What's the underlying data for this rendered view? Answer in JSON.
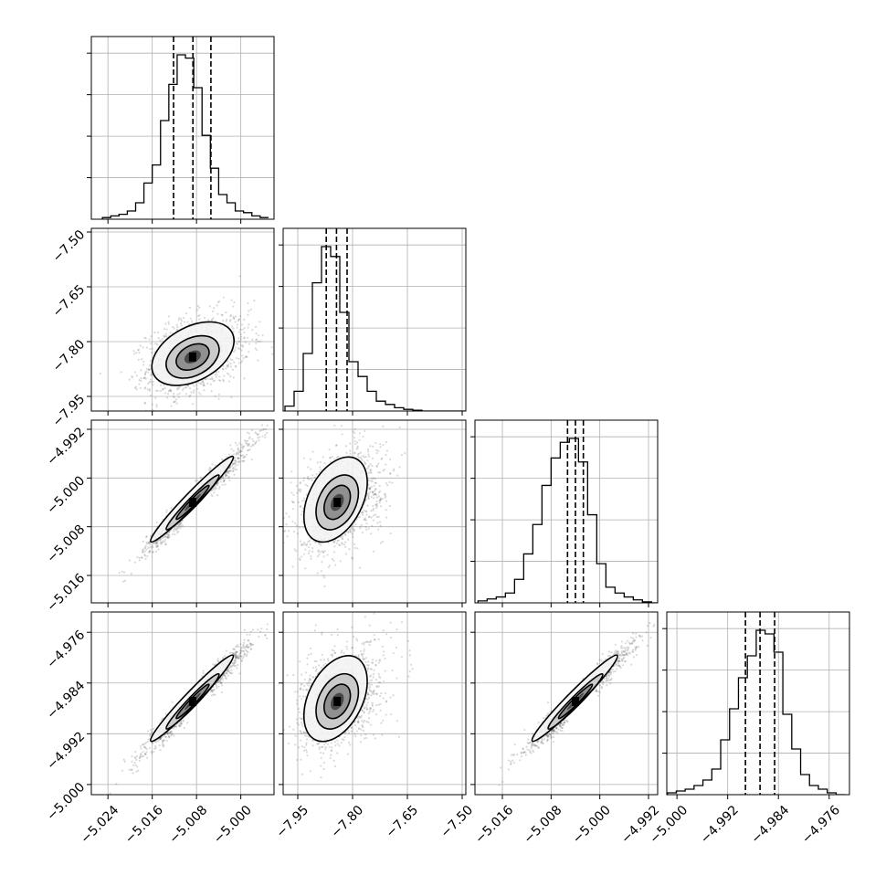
{
  "chart_data": {
    "type": "corner",
    "parameters": 4,
    "grid": true,
    "colors": {
      "frame": "#000000",
      "grid": "#b0b0b0",
      "points": "#555555",
      "dense": "#000000"
    },
    "params": [
      {
        "range": [
          -5.027,
          -4.994
        ],
        "ticks": [
          "−5.024",
          "−5.016",
          "−5.008",
          "−5.000"
        ],
        "tick_values": [
          -5.024,
          -5.016,
          -5.008,
          -5.0
        ]
      },
      {
        "range": [
          -7.99,
          -7.49
        ],
        "ticks": [
          "−7.95",
          "−7.80",
          "−7.65",
          "−7.50"
        ],
        "tick_values": [
          -7.95,
          -7.8,
          -7.65,
          -7.5
        ]
      },
      {
        "range": [
          -5.0205,
          -4.9905
        ],
        "ticks": [
          "−5.016",
          "−5.008",
          "−5.000",
          "−4.992"
        ],
        "tick_values": [
          -5.016,
          -5.008,
          -5.0,
          -4.992
        ]
      },
      {
        "range": [
          -5.0016,
          -4.9728
        ],
        "ticks": [
          "−5.000",
          "−4.992",
          "−4.984",
          "−4.976"
        ],
        "tick_values": [
          -5.0,
          -4.992,
          -4.984,
          -4.976
        ]
      }
    ],
    "marginals": [
      {
        "bins": [
          -5.025,
          -5.0235,
          -5.022,
          -5.0205,
          -5.019,
          -5.0175,
          -5.016,
          -5.0145,
          -5.013,
          -5.0115,
          -5.01,
          -5.0085,
          -5.007,
          -5.0055,
          -5.004,
          -5.0025,
          -5.001,
          -4.9995,
          -4.998,
          -4.9965,
          -4.995
        ],
        "counts": [
          1,
          2,
          3,
          5,
          10,
          22,
          33,
          60,
          82,
          100,
          98,
          80,
          51,
          31,
          15,
          10,
          5,
          4,
          2,
          1
        ],
        "quantiles": [
          -5.01215,
          -5.00865,
          -5.0054
        ]
      },
      {
        "bins": [
          -7.985,
          -7.96,
          -7.935,
          -7.91,
          -7.885,
          -7.86,
          -7.835,
          -7.81,
          -7.785,
          -7.76,
          -7.735,
          -7.71,
          -7.685,
          -7.66,
          -7.635,
          -7.61,
          -7.585,
          -7.56,
          -7.535,
          -7.51,
          -7.485
        ],
        "counts": [
          3,
          12,
          35,
          78,
          100,
          94,
          60,
          30,
          21,
          12,
          6,
          4,
          2,
          1,
          0.5,
          0,
          0,
          0,
          0,
          0
        ],
        "quantiles": [
          -7.872,
          -7.844,
          -7.815
        ]
      },
      {
        "bins": [
          -5.02,
          -5.0185,
          -5.017,
          -5.0155,
          -5.014,
          -5.0125,
          -5.011,
          -5.0095,
          -5.008,
          -5.0065,
          -5.005,
          -5.0035,
          -5.002,
          -5.0005,
          -4.999,
          -4.9975,
          -4.996,
          -4.9945,
          -4.993,
          -4.9915,
          -4.99
        ],
        "counts": [
          1,
          2,
          3,
          5,
          12,
          25,
          40,
          60,
          74,
          82,
          84,
          72,
          45,
          20,
          8,
          5,
          3,
          1.5,
          0.5,
          0
        ],
        "quantiles": [
          -5.0053,
          -5.004,
          -5.0027
        ]
      },
      {
        "bins": [
          -5.0015,
          -5.0001,
          -4.9987,
          -4.9973,
          -4.9959,
          -4.9945,
          -4.9931,
          -4.9917,
          -4.9903,
          -4.9889,
          -4.9875,
          -4.9861,
          -4.9847,
          -4.9833,
          -4.9819,
          -4.9805,
          -4.9791,
          -4.9777,
          -4.9763,
          -4.9749,
          -4.9735
        ],
        "counts": [
          1,
          2,
          3,
          5,
          8,
          14,
          30,
          47,
          64,
          76,
          90,
          88,
          78,
          44,
          25,
          11,
          5,
          3,
          1,
          0
        ],
        "quantiles": [
          -4.9892,
          -4.9869,
          -4.9846
        ]
      }
    ],
    "pairs": [
      {
        "x": 0,
        "y": 1,
        "center": [
          -5.0087,
          -7.842
        ],
        "sigma_x": 0.0033,
        "sigma_y": 0.04,
        "corr": 0.35
      },
      {
        "x": 0,
        "y": 2,
        "center": [
          -5.0087,
          -5.004
        ],
        "sigma_x": 0.0033,
        "sigma_y": 0.0031,
        "corr": 0.97
      },
      {
        "x": 0,
        "y": 3,
        "center": [
          -5.0087,
          -4.9869
        ],
        "sigma_x": 0.0033,
        "sigma_y": 0.003,
        "corr": 0.97
      },
      {
        "x": 1,
        "y": 2,
        "center": [
          -7.842,
          -5.004
        ],
        "sigma_x": 0.04,
        "sigma_y": 0.0031,
        "corr": 0.35
      },
      {
        "x": 1,
        "y": 3,
        "center": [
          -7.842,
          -4.9869
        ],
        "sigma_x": 0.04,
        "sigma_y": 0.003,
        "corr": 0.35
      },
      {
        "x": 2,
        "y": 3,
        "center": [
          -5.004,
          -4.9869
        ],
        "sigma_x": 0.0031,
        "sigma_y": 0.003,
        "corr": 0.97
      }
    ]
  }
}
